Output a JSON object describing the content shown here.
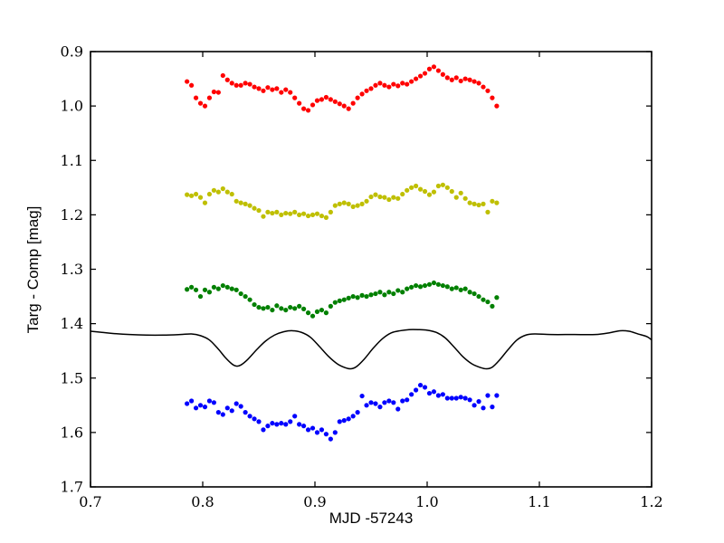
{
  "figure": {
    "background": "#ffffff",
    "frame_color": "#000000"
  },
  "chart_data": {
    "type": "scatter",
    "title": "",
    "xlabel": "MJD -57243",
    "ylabel": "Targ - Comp [mag]",
    "xlim": [
      0.7,
      1.2
    ],
    "ylim_top": 0.9,
    "ylim_bottom": 1.7,
    "grid": false,
    "legend": "none",
    "xtick_labels": [
      "0.7",
      "0.8",
      "0.9",
      "1.0",
      "1.1",
      "1.2"
    ],
    "ytick_labels": [
      "0.9",
      "1.0",
      "1.1",
      "1.2",
      "1.3",
      "1.4",
      "1.5",
      "1.6",
      "1.7"
    ],
    "x": [
      0.786,
      0.79,
      0.794,
      0.798,
      0.802,
      0.806,
      0.81,
      0.814,
      0.818,
      0.822,
      0.826,
      0.83,
      0.834,
      0.838,
      0.842,
      0.846,
      0.85,
      0.854,
      0.858,
      0.862,
      0.866,
      0.87,
      0.874,
      0.878,
      0.882,
      0.886,
      0.89,
      0.894,
      0.898,
      0.902,
      0.906,
      0.91,
      0.914,
      0.918,
      0.922,
      0.926,
      0.93,
      0.934,
      0.938,
      0.942,
      0.946,
      0.95,
      0.954,
      0.958,
      0.962,
      0.966,
      0.97,
      0.974,
      0.978,
      0.982,
      0.986,
      0.99,
      0.994,
      0.998,
      1.002,
      1.006,
      1.01,
      1.014,
      1.018,
      1.022,
      1.026,
      1.03,
      1.034,
      1.038,
      1.042,
      1.046,
      1.05,
      1.054,
      1.058,
      1.062
    ],
    "series": [
      {
        "name": "red-series",
        "color": "#ff0000",
        "marker": "circle",
        "values": [
          0.955,
          0.962,
          0.985,
          0.995,
          1.0,
          0.985,
          0.974,
          0.975,
          0.944,
          0.952,
          0.958,
          0.962,
          0.962,
          0.958,
          0.96,
          0.965,
          0.968,
          0.972,
          0.966,
          0.97,
          0.968,
          0.975,
          0.97,
          0.975,
          0.985,
          0.995,
          1.005,
          1.008,
          0.998,
          0.99,
          0.988,
          0.984,
          0.988,
          0.992,
          0.996,
          1.0,
          1.005,
          0.995,
          0.985,
          0.978,
          0.972,
          0.968,
          0.962,
          0.958,
          0.962,
          0.965,
          0.96,
          0.963,
          0.958,
          0.96,
          0.955,
          0.95,
          0.945,
          0.94,
          0.932,
          0.928,
          0.935,
          0.942,
          0.948,
          0.952,
          0.948,
          0.954,
          0.95,
          0.952,
          0.955,
          0.958,
          0.965,
          0.972,
          0.985,
          1.0
        ]
      },
      {
        "name": "yellow-series",
        "color": "#bfbf00",
        "marker": "circle",
        "values": [
          1.163,
          1.165,
          1.162,
          1.168,
          1.178,
          1.162,
          1.155,
          1.158,
          1.152,
          1.158,
          1.162,
          1.175,
          1.178,
          1.18,
          1.183,
          1.188,
          1.192,
          1.203,
          1.195,
          1.197,
          1.195,
          1.2,
          1.197,
          1.198,
          1.195,
          1.2,
          1.198,
          1.202,
          1.2,
          1.198,
          1.202,
          1.205,
          1.195,
          1.183,
          1.18,
          1.178,
          1.18,
          1.185,
          1.183,
          1.18,
          1.175,
          1.167,
          1.163,
          1.167,
          1.168,
          1.172,
          1.168,
          1.17,
          1.162,
          1.155,
          1.15,
          1.147,
          1.153,
          1.157,
          1.163,
          1.158,
          1.147,
          1.145,
          1.15,
          1.157,
          1.168,
          1.16,
          1.17,
          1.178,
          1.18,
          1.182,
          1.18,
          1.195,
          1.175,
          1.178
        ]
      },
      {
        "name": "green-series",
        "color": "#008000",
        "marker": "circle",
        "values": [
          1.337,
          1.333,
          1.338,
          1.35,
          1.338,
          1.342,
          1.333,
          1.336,
          1.33,
          1.333,
          1.336,
          1.338,
          1.345,
          1.35,
          1.356,
          1.365,
          1.37,
          1.372,
          1.37,
          1.375,
          1.367,
          1.372,
          1.375,
          1.37,
          1.372,
          1.368,
          1.373,
          1.38,
          1.386,
          1.378,
          1.375,
          1.38,
          1.368,
          1.361,
          1.358,
          1.356,
          1.353,
          1.35,
          1.352,
          1.348,
          1.35,
          1.347,
          1.345,
          1.342,
          1.347,
          1.342,
          1.345,
          1.339,
          1.342,
          1.336,
          1.333,
          1.33,
          1.332,
          1.33,
          1.328,
          1.325,
          1.328,
          1.33,
          1.332,
          1.336,
          1.334,
          1.338,
          1.336,
          1.342,
          1.345,
          1.35,
          1.356,
          1.36,
          1.368,
          1.352
        ]
      },
      {
        "name": "blue-series",
        "color": "#0000ff",
        "marker": "circle",
        "values": [
          1.547,
          1.542,
          1.555,
          1.55,
          1.553,
          1.542,
          1.545,
          1.563,
          1.567,
          1.555,
          1.56,
          1.547,
          1.552,
          1.563,
          1.57,
          1.575,
          1.58,
          1.595,
          1.588,
          1.583,
          1.585,
          1.583,
          1.585,
          1.58,
          1.57,
          1.585,
          1.588,
          1.595,
          1.592,
          1.6,
          1.595,
          1.603,
          1.612,
          1.6,
          1.58,
          1.578,
          1.575,
          1.57,
          1.563,
          1.533,
          1.55,
          1.545,
          1.547,
          1.553,
          1.545,
          1.542,
          1.545,
          1.557,
          1.542,
          1.54,
          1.53,
          1.522,
          1.513,
          1.517,
          1.528,
          1.525,
          1.532,
          1.53,
          1.537,
          1.537,
          1.537,
          1.535,
          1.537,
          1.54,
          1.55,
          1.543,
          1.555,
          1.532,
          1.553,
          1.532
        ]
      }
    ],
    "model_curve": {
      "name": "model-curve",
      "color": "#000000",
      "x": [
        0.7,
        0.71,
        0.72,
        0.735,
        0.75,
        0.765,
        0.78,
        0.79,
        0.798,
        0.806,
        0.814,
        0.82,
        0.826,
        0.83,
        0.834,
        0.84,
        0.848,
        0.856,
        0.864,
        0.872,
        0.88,
        0.888,
        0.896,
        0.904,
        0.912,
        0.92,
        0.927,
        0.932,
        0.937,
        0.944,
        0.952,
        0.96,
        0.968,
        0.976,
        0.984,
        0.992,
        1.0,
        1.008,
        1.016,
        1.024,
        1.032,
        1.04,
        1.048,
        1.053,
        1.058,
        1.064,
        1.072,
        1.08,
        1.088,
        1.096,
        1.11,
        1.13,
        1.15,
        1.162,
        1.172,
        1.18,
        1.188,
        1.196,
        1.2
      ],
      "y": [
        1.414,
        1.416,
        1.418,
        1.42,
        1.421,
        1.421,
        1.42,
        1.419,
        1.422,
        1.43,
        1.447,
        1.462,
        1.474,
        1.478,
        1.476,
        1.466,
        1.448,
        1.432,
        1.421,
        1.415,
        1.413,
        1.416,
        1.425,
        1.442,
        1.46,
        1.474,
        1.481,
        1.483,
        1.479,
        1.465,
        1.445,
        1.428,
        1.417,
        1.413,
        1.411,
        1.411,
        1.412,
        1.416,
        1.426,
        1.443,
        1.461,
        1.474,
        1.481,
        1.483,
        1.48,
        1.468,
        1.448,
        1.43,
        1.421,
        1.419,
        1.42,
        1.42,
        1.42,
        1.417,
        1.413,
        1.414,
        1.419,
        1.424,
        1.43
      ]
    }
  }
}
